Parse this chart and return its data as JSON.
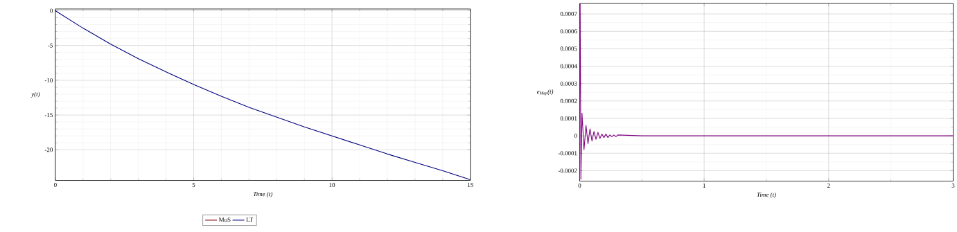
{
  "chart_data": [
    {
      "type": "line",
      "xlabel": "Time (t)",
      "ylabel": "y(t)",
      "xlim": [
        0,
        15
      ],
      "ylim": [
        -24.4,
        0.25
      ],
      "xticks": [
        0,
        5,
        10,
        15
      ],
      "yticks": [
        -20,
        -15,
        -10,
        -5,
        0
      ],
      "grid": true,
      "legend": "bottom",
      "marker": "none",
      "line_style": "solid",
      "x": [
        0,
        1,
        2,
        3,
        4,
        5,
        6,
        7,
        8,
        9,
        10,
        11,
        12,
        13,
        14,
        15
      ],
      "series": [
        {
          "name": "MoS",
          "color": "#7f0000",
          "values": [
            null,
            null,
            null,
            null,
            null,
            null,
            null,
            null,
            null,
            null,
            null,
            null,
            null,
            null,
            null,
            null
          ]
        },
        {
          "name": "LT",
          "color": "#00007f",
          "values": [
            0,
            -2.5,
            -4.8,
            -6.9,
            -8.8,
            -10.6,
            -12.3,
            -13.9,
            -15.3,
            -16.7,
            -18.0,
            -19.3,
            -20.6,
            -21.8,
            -23.0,
            -24.3
          ]
        }
      ]
    },
    {
      "type": "line",
      "xlabel": "Time (t)",
      "ylabel": "e$_{Map}$(t)",
      "xlim": [
        0,
        3
      ],
      "ylim": [
        -0.00026,
        0.00076
      ],
      "xticks": [
        0,
        1,
        2,
        3
      ],
      "yticks": [
        -0.0002,
        -0.0001,
        0,
        0.0001,
        0.0002,
        0.0003,
        0.0004,
        0.0005,
        0.0006,
        0.0007
      ],
      "grid": true,
      "marker": "none",
      "line_style": "solid",
      "x": [
        0,
        0.004,
        0.01,
        0.019,
        0.035,
        0.051,
        0.067,
        0.083,
        0.099,
        0.115,
        0.131,
        0.147,
        0.163,
        0.179,
        0.195,
        0.211,
        0.227,
        0.243,
        0.259,
        0.275,
        0.291,
        0.307,
        0.5,
        1,
        2,
        3
      ],
      "series": [
        {
          "color": "#800080",
          "values": [
            0.0002,
            0.00076,
            -0.00025,
            0.00013,
            -8e-05,
            6e-05,
            -4.5e-05,
            4e-05,
            -3e-05,
            2.5e-05,
            -2e-05,
            2e-05,
            -1.5e-05,
            1e-05,
            -1e-05,
            1e-05,
            -1e-05,
            5e-06,
            -5e-06,
            5e-06,
            -5e-06,
            5e-06,
            0,
            0,
            0,
            0
          ]
        }
      ]
    }
  ]
}
